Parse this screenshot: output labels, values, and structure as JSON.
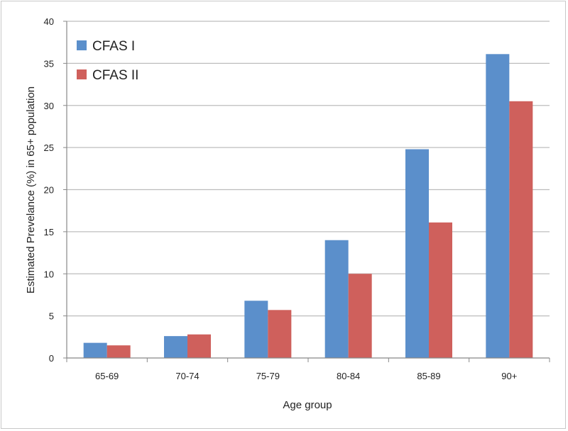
{
  "chart_data": {
    "type": "bar",
    "title": "",
    "xlabel": "Age group",
    "ylabel": "Estimated Prevelance (%) in 65+ population",
    "categories": [
      "65-69",
      "70-74",
      "75-79",
      "80-84",
      "85-89",
      "90+"
    ],
    "series": [
      {
        "name": "CFAS I",
        "color": "#5b8fcb",
        "values": [
          1.8,
          2.6,
          6.8,
          14.0,
          24.8,
          36.1
        ]
      },
      {
        "name": "CFAS II",
        "color": "#cf605c",
        "values": [
          1.5,
          2.8,
          5.7,
          10.0,
          16.1,
          30.5
        ]
      }
    ],
    "ylim": [
      0,
      40
    ],
    "yticks": [
      0,
      5,
      10,
      15,
      20,
      25,
      30,
      35,
      40
    ],
    "grid": true,
    "legend_position": "top-left"
  }
}
